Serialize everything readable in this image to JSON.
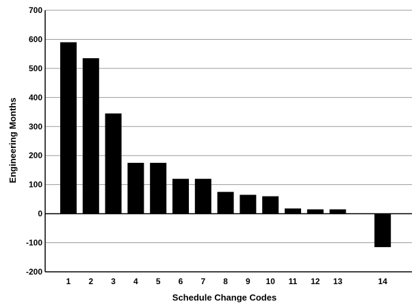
{
  "chart_data": {
    "type": "bar",
    "xlabel": "Schedule Change Codes",
    "ylabel": "Engineering Months",
    "ylim": [
      -200,
      700
    ],
    "yticks": [
      700,
      600,
      500,
      400,
      300,
      200,
      100,
      0,
      -100,
      -200
    ],
    "ytick_labels": [
      "700",
      "600",
      "500",
      "400",
      "300",
      "200",
      "100",
      "0",
      "-100",
      "-200"
    ],
    "grid": "horizontal",
    "legend": "none",
    "bar_color": "#000000",
    "categories": [
      "1",
      "2",
      "3",
      "4",
      "5",
      "6",
      "7",
      "8",
      "9",
      "10",
      "11",
      "12",
      "13",
      "14"
    ],
    "x_positions": [
      1,
      2,
      3,
      4,
      5,
      6,
      7,
      8,
      9,
      10,
      11,
      12,
      13,
      15
    ],
    "values": [
      590,
      535,
      345,
      175,
      175,
      120,
      120,
      75,
      65,
      60,
      18,
      15,
      15,
      -115
    ]
  }
}
